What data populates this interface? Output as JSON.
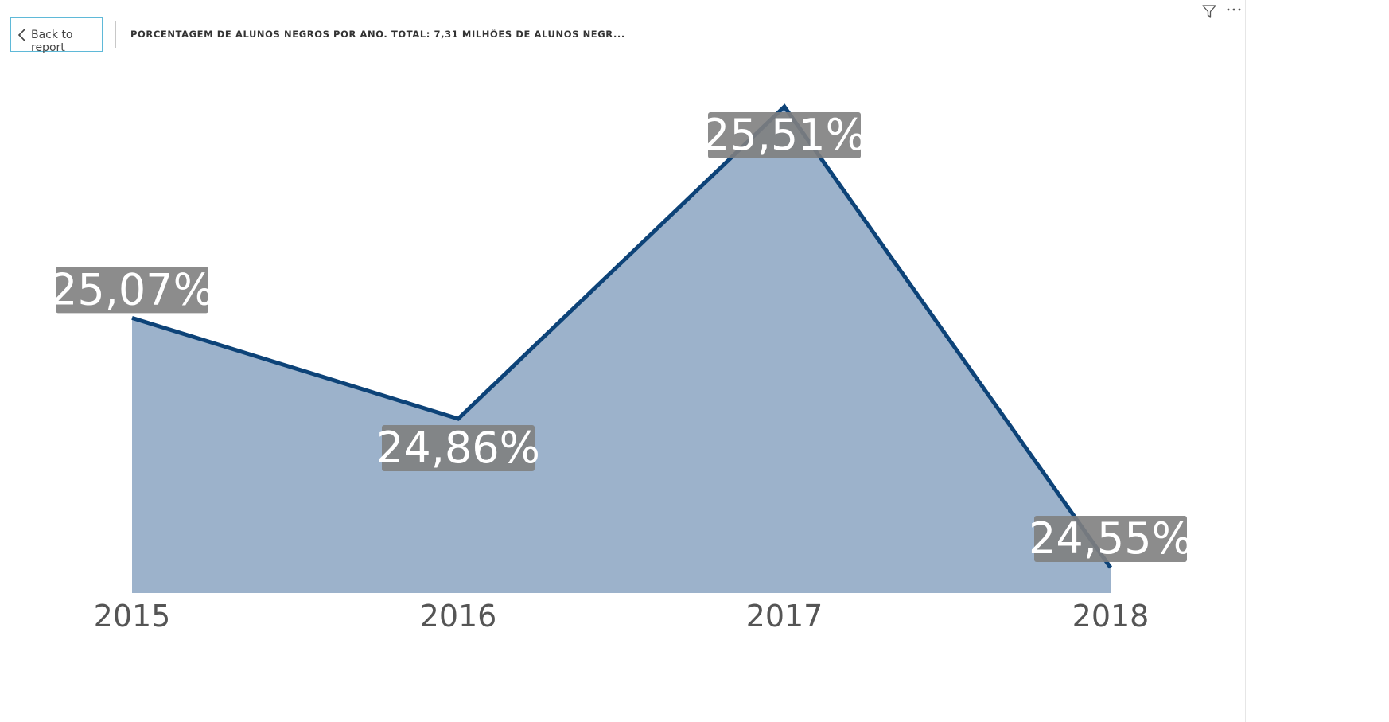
{
  "header": {
    "back_label": "Back to report",
    "title": "PORCENTAGEM DE ALUNOS NEGROS POR ANO. TOTAL: 7,31 MILHÕES DE ALUNOS NEGR..."
  },
  "icons": {
    "back": "chevron-left-icon",
    "filter": "filter-icon",
    "more": "more-options-icon"
  },
  "colors": {
    "line": "#0d4378",
    "area": "#9cb2cb",
    "label_bg": "#7f7f7f",
    "label_text": "#ffffff",
    "axis_text": "#555555"
  },
  "chart_data": {
    "type": "area",
    "title": "PORCENTAGEM DE ALUNOS NEGROS POR ANO. TOTAL: 7,31 MILHÕES DE ALUNOS NEGR...",
    "categories": [
      "2015",
      "2016",
      "2017",
      "2018"
    ],
    "values": [
      25.07,
      24.86,
      25.51,
      24.55
    ],
    "data_labels": [
      "25,07%",
      "24,86%",
      "25,51%",
      "24,55%"
    ],
    "xlabel": "",
    "ylabel": "",
    "ylim": [
      24.5,
      25.5
    ],
    "grid": false,
    "legend": "none"
  }
}
